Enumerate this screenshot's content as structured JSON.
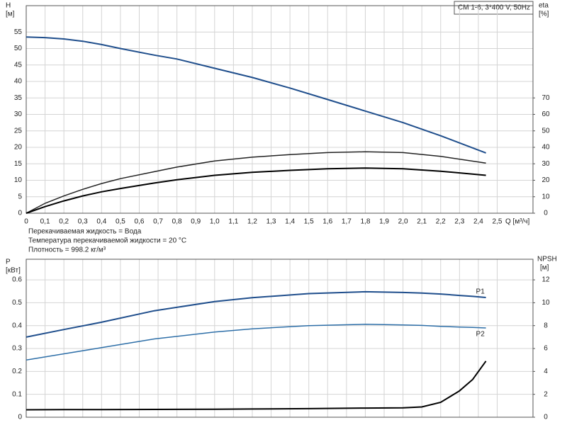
{
  "chart_data": [
    {
      "type": "line",
      "title": "CM 1-6, 3*400 V, 50Hz",
      "xlabel": "Q [м³/ч]",
      "ylabel": "H",
      "yunit": "[м]",
      "y2label": "eta",
      "y2unit": "[%]",
      "notes": [
        "Перекачиваемая жидкость = Вода",
        "Температура перекачиваемой жидкости = 20 °C",
        "Плотность = 998.2 кг/м³"
      ],
      "grid": true,
      "xlim": [
        0,
        2.69
      ],
      "xticks": [
        0,
        {
          "value": 0.1,
          "label": "0,1"
        },
        {
          "value": 0.2,
          "label": "0,2"
        },
        {
          "value": 0.3,
          "label": "0,3"
        },
        {
          "value": 0.4,
          "label": "0,4"
        },
        {
          "value": 0.5,
          "label": "0,5"
        },
        {
          "value": 0.6,
          "label": "0,6"
        },
        {
          "value": 0.7,
          "label": "0,7"
        },
        {
          "value": 0.8,
          "label": "0,8"
        },
        {
          "value": 0.9,
          "label": "0,9"
        },
        {
          "value": 1.0,
          "label": "1,0"
        },
        {
          "value": 1.1,
          "label": "1,1"
        },
        {
          "value": 1.2,
          "label": "1,2"
        },
        {
          "value": 1.3,
          "label": "1,3"
        },
        {
          "value": 1.4,
          "label": "1,4"
        },
        {
          "value": 1.5,
          "label": "1,5"
        },
        {
          "value": 1.6,
          "label": "1,6"
        },
        {
          "value": 1.7,
          "label": "1,7"
        },
        {
          "value": 1.8,
          "label": "1,8"
        },
        {
          "value": 1.9,
          "label": "1,9"
        },
        {
          "value": 2.0,
          "label": "2,0"
        },
        {
          "value": 2.1,
          "label": "2,1"
        },
        {
          "value": 2.2,
          "label": "2,2"
        },
        {
          "value": 2.3,
          "label": "2,3"
        },
        {
          "value": 2.4,
          "label": "2,4"
        },
        {
          "value": 2.5,
          "label": "2,5"
        }
      ],
      "ylim": [
        0,
        63
      ],
      "yticks": [
        0,
        5,
        10,
        15,
        20,
        25,
        30,
        35,
        40,
        45,
        50,
        55
      ],
      "y2lim": [
        0,
        126
      ],
      "y2ticks": [
        0,
        10,
        20,
        30,
        40,
        50,
        60,
        70
      ],
      "x": [
        0,
        0.1,
        0.2,
        0.3,
        0.4,
        0.5,
        0.68,
        0.8,
        1.0,
        1.2,
        1.4,
        1.6,
        1.8,
        2.0,
        2.2,
        2.44
      ],
      "series": [
        {
          "color": "#1f4e8c",
          "values": [
            53.5,
            53.3,
            52.9,
            52.2,
            51.2,
            50,
            48,
            46.8,
            44,
            41.2,
            38,
            34.5,
            31,
            27.5,
            23.5,
            18.3
          ]
        },
        {
          "color": "#222222",
          "axis": "y2",
          "values": [
            0,
            6,
            10.5,
            14.5,
            18,
            21,
            25.2,
            28,
            31.7,
            34,
            35.6,
            36.8,
            37.3,
            36.8,
            34.5,
            30.4
          ]
        },
        {
          "color": "#000000",
          "axis": "y2",
          "values": [
            0,
            4,
            7.5,
            10.5,
            13,
            15,
            18.3,
            20.3,
            23,
            24.8,
            26,
            27,
            27.4,
            27,
            25.5,
            23
          ]
        }
      ]
    },
    {
      "type": "line",
      "ylabel": "P",
      "yunit": "[кВт]",
      "y2label": "NPSH",
      "y2unit": "[м]",
      "grid": true,
      "xlim": [
        0,
        2.69
      ],
      "ylim": [
        0,
        0.69
      ],
      "yticks": [
        0,
        0.1,
        0.2,
        0.3,
        0.4,
        0.5,
        0.6
      ],
      "y2lim": [
        0,
        13.8
      ],
      "y2ticks": [
        0,
        2,
        4,
        6,
        8,
        10,
        12
      ],
      "x": [
        0,
        0.2,
        0.4,
        0.68,
        1.0,
        1.2,
        1.5,
        1.8,
        2.0,
        2.1,
        2.2,
        2.3,
        2.37,
        2.44
      ],
      "series": [
        {
          "name": "P1",
          "color": "#1f4e8c",
          "values": [
            0.35,
            0.383,
            0.415,
            0.465,
            0.505,
            0.522,
            0.54,
            0.548,
            0.545,
            0.542,
            0.538,
            0.532,
            0.528,
            0.523
          ]
        },
        {
          "name": "P2",
          "color": "#2e6fa8",
          "values": [
            0.25,
            0.277,
            0.304,
            0.342,
            0.372,
            0.386,
            0.4,
            0.406,
            0.403,
            0.401,
            0.397,
            0.394,
            0.392,
            0.39
          ]
        },
        {
          "color": "#000000",
          "axis": "y2",
          "values": [
            0.65,
            0.66,
            0.67,
            0.68,
            0.7,
            0.72,
            0.75,
            0.8,
            0.82,
            0.9,
            1.3,
            2.3,
            3.3,
            4.9
          ]
        }
      ]
    }
  ]
}
